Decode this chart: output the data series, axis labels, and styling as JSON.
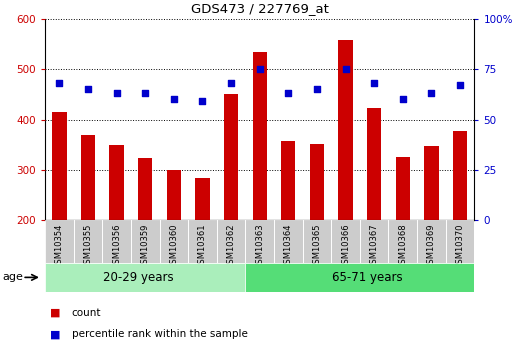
{
  "title": "GDS473 / 227769_at",
  "samples": [
    "GSM10354",
    "GSM10355",
    "GSM10356",
    "GSM10359",
    "GSM10360",
    "GSM10361",
    "GSM10362",
    "GSM10363",
    "GSM10364",
    "GSM10365",
    "GSM10366",
    "GSM10367",
    "GSM10368",
    "GSM10369",
    "GSM10370"
  ],
  "counts": [
    415,
    370,
    350,
    323,
    300,
    283,
    450,
    535,
    358,
    352,
    558,
    423,
    325,
    348,
    378
  ],
  "percentile_ranks": [
    68,
    65,
    63,
    63,
    60,
    59,
    68,
    75,
    63,
    65,
    75,
    68,
    60,
    63,
    67
  ],
  "group1_label": "20-29 years",
  "group2_label": "65-71 years",
  "group1_count": 7,
  "group2_count": 8,
  "ymin": 200,
  "ymax": 600,
  "yticks": [
    200,
    300,
    400,
    500,
    600
  ],
  "y2min": 0,
  "y2max": 100,
  "y2ticks": [
    0,
    25,
    50,
    75,
    100
  ],
  "bar_color": "#cc0000",
  "dot_color": "#0000cc",
  "bar_width": 0.5,
  "legend_label_count": "count",
  "legend_label_pct": "percentile rank within the sample",
  "age_label": "age",
  "group1_bg": "#aaeebb",
  "group2_bg": "#55dd77",
  "tick_label_bg": "#cccccc",
  "plot_bg": "#ffffff",
  "fig_bg": "#ffffff"
}
